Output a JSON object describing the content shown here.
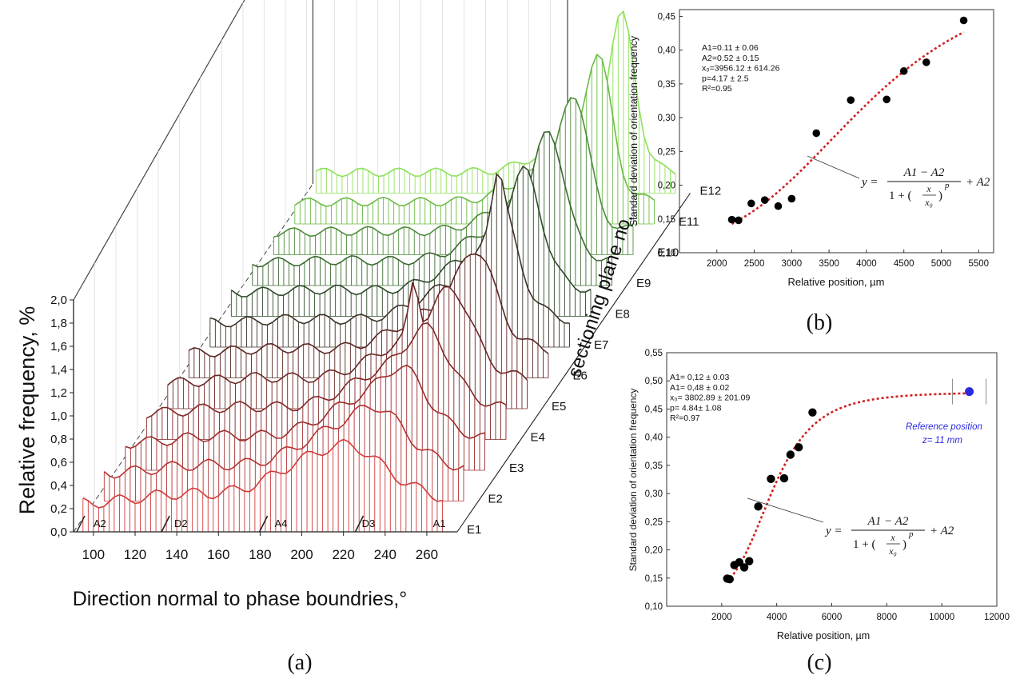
{
  "chart_data": [
    {
      "id": "a",
      "type": "area",
      "panel_label": "(a)",
      "xlabel": "Direction normal to phase boundries,°",
      "ylabel": "Relative frequency, %",
      "zlabel": "sectioning plane no.",
      "x_ticks": [
        "100",
        "120",
        "140",
        "160",
        "180",
        "200",
        "220",
        "240",
        "260"
      ],
      "y_ticks": [
        "0,0",
        "0,2",
        "0,4",
        "0,6",
        "0,8",
        "1,0",
        "1,2",
        "1,4",
        "1,6",
        "1,8",
        "2,0"
      ],
      "planes": [
        "E1",
        "E2",
        "E3",
        "E4",
        "E5",
        "E6",
        "E7",
        "E8",
        "E9",
        "E10",
        "E11",
        "E12"
      ],
      "regions": [
        "A2",
        "D2",
        "A4",
        "D3",
        "A1"
      ],
      "xlim": [
        92,
        270
      ],
      "ylim": [
        0,
        2.0
      ],
      "colors": [
        "#d23a3a",
        "#b83232",
        "#9e2b2b",
        "#842626",
        "#6d2424",
        "#5a2622",
        "#3d3326",
        "#2f4a2a",
        "#3b6a30",
        "#4e8d3a",
        "#6bbb45",
        "#8de05a"
      ]
    },
    {
      "id": "b",
      "type": "scatter",
      "panel_label": "(b)",
      "xlabel": "Relative position, µm",
      "ylabel": "Standard deviation of orientation frequency",
      "xlim": [
        1500,
        5700
      ],
      "ylim": [
        0.1,
        0.46
      ],
      "x_ticks": [
        "2000",
        "2500",
        "3000",
        "3500",
        "4000",
        "4500",
        "5000",
        "5500"
      ],
      "y_ticks": [
        "0,10",
        "0,15",
        "0,20",
        "0,25",
        "0,30",
        "0,35",
        "0,40",
        "0,45"
      ],
      "points": [
        [
          2200,
          0.149
        ],
        [
          2290,
          0.148
        ],
        [
          2460,
          0.173
        ],
        [
          2640,
          0.178
        ],
        [
          2820,
          0.169
        ],
        [
          3000,
          0.18
        ],
        [
          3330,
          0.277
        ],
        [
          3790,
          0.326
        ],
        [
          4270,
          0.327
        ],
        [
          4500,
          0.369
        ],
        [
          4800,
          0.382
        ],
        [
          5300,
          0.444
        ]
      ],
      "fit": {
        "A1": 0.11,
        "A2": 0.52,
        "x0": 3956.12,
        "p": 4.17,
        "x_range": [
          2200,
          5300
        ]
      },
      "fit_params": [
        "A1=0.11 ± 0.06",
        "A2=0.52 ± 0.15",
        "x₀=3956.12 ± 614.26",
        "p=4.17 ± 2.5",
        "R²=0.95"
      ],
      "equation": {
        "lhs": "y =",
        "num": "A1 − A2",
        "den_left": "1 + (",
        "den_frac_num": "x",
        "den_frac_den": "x₀",
        "den_right": ")",
        "exp": "p",
        "tail": "+ A2"
      }
    },
    {
      "id": "c",
      "type": "scatter",
      "panel_label": "(c)",
      "xlabel": "Relative position, µm",
      "ylabel": "Standard deviation of orientation frequency",
      "xlim": [
        0,
        12000
      ],
      "ylim": [
        0.1,
        0.55
      ],
      "x_ticks": [
        "2000",
        "4000",
        "6000",
        "8000",
        "10000",
        "12000"
      ],
      "y_ticks": [
        "0,10",
        "0,15",
        "0,20",
        "0,25",
        "0,30",
        "0,35",
        "0,40",
        "0,45",
        "0,50",
        "0,55"
      ],
      "points": [
        [
          2200,
          0.149
        ],
        [
          2290,
          0.148
        ],
        [
          2460,
          0.173
        ],
        [
          2640,
          0.178
        ],
        [
          2820,
          0.169
        ],
        [
          3000,
          0.18
        ],
        [
          3330,
          0.277
        ],
        [
          3790,
          0.326
        ],
        [
          4270,
          0.327
        ],
        [
          4500,
          0.369
        ],
        [
          4800,
          0.382
        ],
        [
          5300,
          0.444
        ]
      ],
      "reference_point": {
        "x": 11000,
        "y": 0.481,
        "color": "#2a2ae0",
        "label1": "Reference position",
        "label2": "z= 11 mm"
      },
      "fit": {
        "A1": 0.12,
        "A2": 0.48,
        "x0": 3802.89,
        "p": 4.84,
        "x_range": [
          2200,
          11000
        ]
      },
      "fit_params": [
        "A1= 0,12 ± 0.03",
        "A1= 0,48 ± 0.02",
        "x₀= 3802.89 ± 201.09",
        "p= 4.84± 1.08",
        "R²=0.97"
      ],
      "equation": {
        "lhs": "y =",
        "num": "A1 − A2",
        "den_left": "1 + (",
        "den_frac_num": "x",
        "den_frac_den": "x₀",
        "den_right": ")",
        "exp": "p",
        "tail": "+ A2"
      }
    }
  ],
  "colors": {
    "fit_line": "#d11f1f",
    "points": "#000000",
    "grid": "#d8d8d8",
    "reference": "#2a2ae0"
  }
}
